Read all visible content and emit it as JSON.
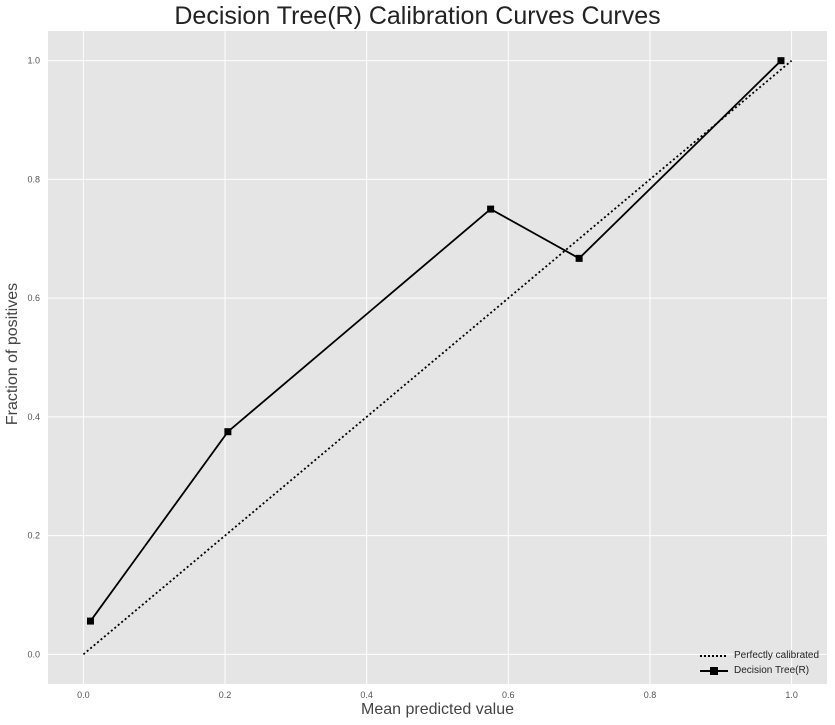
{
  "chart_data": {
    "type": "line",
    "title": "Decision Tree(R) Calibration Curves Curves",
    "xlabel": "Mean predicted value",
    "ylabel": "Fraction of positives",
    "xlim": [
      -0.05,
      1.05
    ],
    "ylim": [
      -0.05,
      1.05
    ],
    "xticks": [
      0.0,
      0.2,
      0.4,
      0.6,
      0.8,
      1.0
    ],
    "yticks": [
      0.0,
      0.2,
      0.4,
      0.6,
      0.8,
      1.0
    ],
    "tick_labels_x": [
      "0.0",
      "0.2",
      "0.4",
      "0.6",
      "0.8",
      "1.0"
    ],
    "tick_labels_y": [
      "0.0",
      "0.2",
      "0.4",
      "0.6",
      "0.8",
      "1.0"
    ],
    "grid": true,
    "legend_position": "bottom-right",
    "background": "#e5e5e5",
    "series": [
      {
        "name": "Perfectly calibrated",
        "style": "dotted",
        "color": "#000000",
        "x": [
          0.0,
          1.0
        ],
        "y": [
          0.0,
          1.0
        ]
      },
      {
        "name": "Decision Tree(R)",
        "style": "solid",
        "marker": "square",
        "color": "#000000",
        "x": [
          0.01,
          0.204,
          0.575,
          0.7,
          0.985
        ],
        "y": [
          0.056,
          0.375,
          0.75,
          0.667,
          1.0
        ]
      }
    ]
  }
}
